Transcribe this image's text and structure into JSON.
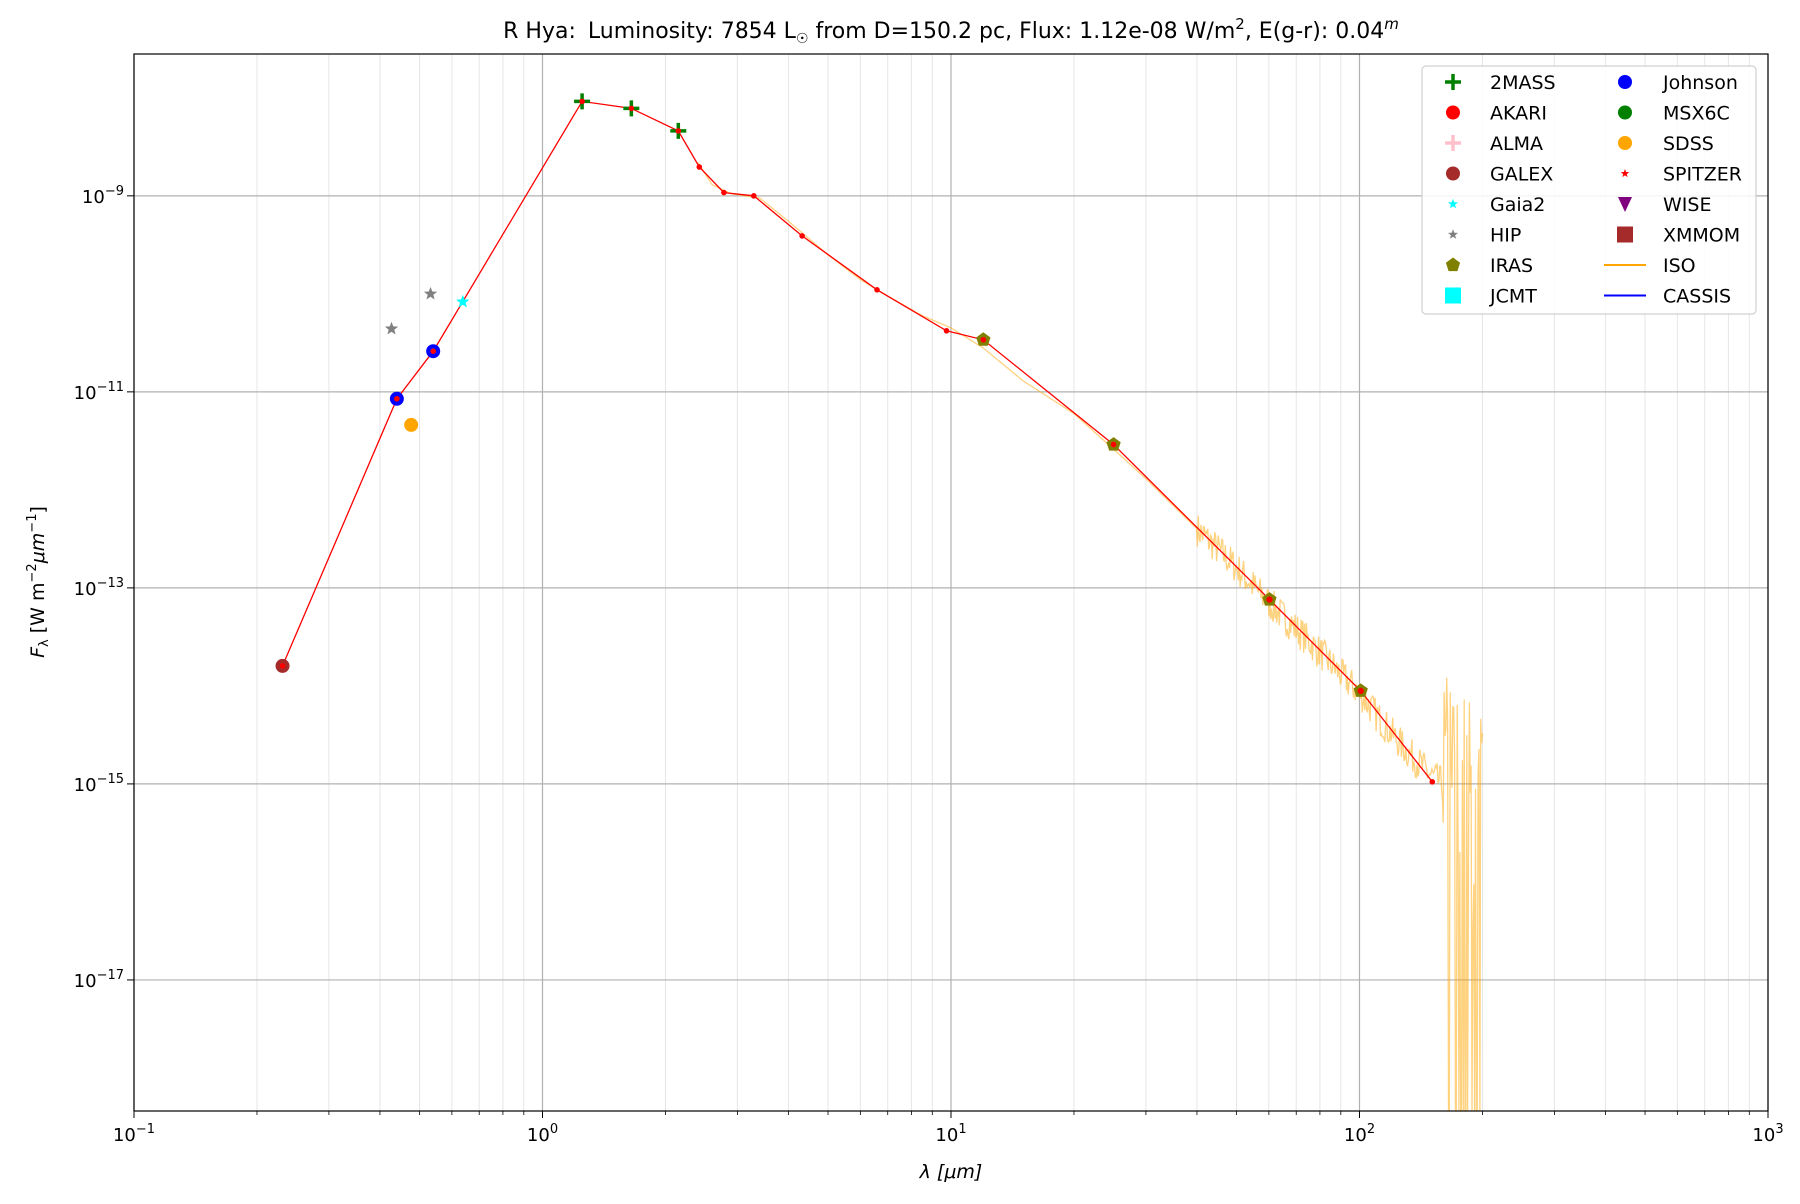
{
  "chart_data": {
    "type": "scatter",
    "title": {
      "star": "R Hya:",
      "lum_prefix": "Luminosity: 7854 L",
      "lum_symbol": "☉",
      "middle": " from D=150.2 pc, Flux: 1.12e-08 W/m",
      "flux_exp": "2",
      "ext": ", E(g-r): 0.04",
      "ext_sup": "m"
    },
    "xlabel": "λ [μm]",
    "ylabel": "F_λ [W m^-2 μm^-1]",
    "xscale": "log",
    "yscale": "log",
    "xlim": [
      0.1,
      1000
    ],
    "ylim": [
      4.6e-19,
      2.8e-08
    ],
    "grid": true,
    "x_ticks": [
      {
        "exp": -1,
        "label": "10",
        "sup": "−1"
      },
      {
        "exp": 0,
        "label": "10",
        "sup": "0"
      },
      {
        "exp": 1,
        "label": "10",
        "sup": "1"
      },
      {
        "exp": 2,
        "label": "10",
        "sup": "2"
      },
      {
        "exp": 3,
        "label": "10",
        "sup": "3"
      }
    ],
    "y_ticks": [
      {
        "exp": -9,
        "label": "10",
        "sup": "−9"
      },
      {
        "exp": -11,
        "label": "10",
        "sup": "−11"
      },
      {
        "exp": -13,
        "label": "10",
        "sup": "−13"
      },
      {
        "exp": -15,
        "label": "10",
        "sup": "−15"
      },
      {
        "exp": -17,
        "label": "10",
        "sup": "−17"
      }
    ],
    "legend_placement": "top-right",
    "sed_line": {
      "color": "#ff0000",
      "points": [
        [
          0.231,
          1.6e-14
        ],
        [
          0.44,
          8.5e-12
        ],
        [
          0.54,
          2.6e-11
        ],
        [
          1.25,
          9.2e-09
        ],
        [
          1.65,
          7.8e-09
        ],
        [
          2.15,
          4.6e-09
        ],
        [
          2.42,
          1.97e-09
        ],
        [
          2.78,
          1.08e-09
        ],
        [
          3.29,
          1e-09
        ],
        [
          4.32,
          3.9e-10
        ],
        [
          6.59,
          1.1e-10
        ],
        [
          9.75,
          4.2e-11
        ],
        [
          12.0,
          3.4e-11
        ],
        [
          25.0,
          2.9e-12
        ],
        [
          60.2,
          7.6e-14
        ],
        [
          100.7,
          8.9e-15
        ],
        [
          150.7,
          1.05e-15
        ]
      ]
    },
    "iso_spectrum": {
      "color": "#ffa500",
      "points": [
        [
          2.4,
          2.2e-09
        ],
        [
          2.6,
          1.3e-09
        ],
        [
          2.9,
          1.05e-09
        ],
        [
          3.4,
          9.5e-10
        ],
        [
          4.0,
          5.5e-10
        ],
        [
          5.0,
          2.5e-10
        ],
        [
          6.0,
          1.4e-10
        ],
        [
          7.0,
          9.5e-11
        ],
        [
          8.5,
          6e-11
        ],
        [
          10,
          4.5e-11
        ],
        [
          12,
          2.8e-11
        ],
        [
          15,
          1.3e-11
        ],
        [
          20,
          6e-12
        ],
        [
          25,
          2.6e-12
        ],
        [
          30,
          1.3e-12
        ],
        [
          40,
          4e-13
        ],
        [
          50,
          1.6e-13
        ],
        [
          60,
          7e-14
        ],
        [
          70,
          3.8e-14
        ],
        [
          80,
          2.2e-14
        ],
        [
          90,
          1.3e-14
        ],
        [
          100,
          8.5e-15
        ],
        [
          110,
          5e-15
        ],
        [
          130,
          2.2e-15
        ],
        [
          150,
          1.2e-15
        ],
        [
          160,
          1e-15
        ],
        [
          170,
          7e-16
        ],
        [
          185,
          5e-16
        ],
        [
          200,
          4e-16
        ]
      ]
    },
    "series": [
      {
        "name": "2MASS",
        "marker": "plus",
        "color": "#008000",
        "points": [
          [
            1.25,
            9.2e-09
          ],
          [
            1.65,
            7.8e-09
          ],
          [
            2.15,
            4.6e-09
          ]
        ]
      },
      {
        "name": "AKARI",
        "marker": "circle",
        "color": "#ff0000",
        "points": [
          [
            60.2,
            7.6e-14
          ],
          [
            100.7,
            8.9e-15
          ]
        ]
      },
      {
        "name": "ALMA",
        "marker": "plus",
        "color": "#ffc0cb",
        "points": []
      },
      {
        "name": "GALEX",
        "marker": "circle",
        "color": "#a52a2a",
        "points": [
          [
            0.231,
            1.6e-14
          ]
        ]
      },
      {
        "name": "Gaia2",
        "marker": "star",
        "color": "#00ffff",
        "points": [
          [
            0.638,
            8.3e-11
          ]
        ]
      },
      {
        "name": "HIP",
        "marker": "star",
        "color": "#808080",
        "points": [
          [
            0.427,
            4.4e-11
          ],
          [
            0.532,
            1e-10
          ]
        ]
      },
      {
        "name": "IRAS",
        "marker": "pentagon",
        "color": "#808000",
        "points": [
          [
            12.0,
            3.4e-11
          ],
          [
            25.0,
            2.9e-12
          ],
          [
            60.2,
            7.6e-14
          ],
          [
            100.7,
            8.9e-15
          ]
        ]
      },
      {
        "name": "JCMT",
        "marker": "square",
        "color": "#00ffff",
        "points": []
      },
      {
        "name": "Johnson",
        "marker": "circle",
        "color": "#0000ff",
        "points": [
          [
            0.44,
            8.5e-12
          ],
          [
            0.54,
            2.6e-11
          ]
        ]
      },
      {
        "name": "MSX6C",
        "marker": "circle",
        "color": "#008000",
        "points": []
      },
      {
        "name": "SDSS",
        "marker": "circle",
        "color": "#ffa500",
        "points": [
          [
            0.477,
            4.6e-12
          ]
        ]
      },
      {
        "name": "SPITZER",
        "marker": "smallstar",
        "color": "#ff0000",
        "points": []
      },
      {
        "name": "WISE",
        "marker": "triangle-down",
        "color": "#800080",
        "points": []
      },
      {
        "name": "XMMOM",
        "marker": "square",
        "color": "#a52a2a",
        "points": []
      },
      {
        "name": "ISO",
        "marker": "line",
        "color": "#ffa500",
        "points": []
      },
      {
        "name": "CASSIS",
        "marker": "line",
        "color": "#0000ff",
        "points": []
      }
    ]
  }
}
